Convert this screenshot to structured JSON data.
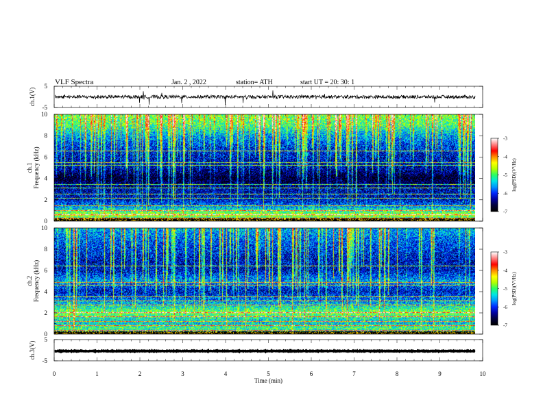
{
  "header": {
    "title": "VLF  Spectra",
    "date": "Jan. 2  , 2022",
    "station": "station= ATH",
    "start": "start  UT  =    20: 30: 1"
  },
  "colors": {
    "spectrum": [
      "#000000",
      "#00003c",
      "#0000a0",
      "#0028ff",
      "#0096ff",
      "#00e6e6",
      "#28ff64",
      "#b4ff00",
      "#ffff00",
      "#ff8c00",
      "#ff0000",
      "#ff8080",
      "#ffffff"
    ],
    "waveform": "#000000"
  },
  "chart_data": [
    {
      "type": "line",
      "name": "ch1-waveform",
      "ylabel": "ch.1(V)",
      "ylim": [
        -5,
        5
      ],
      "yticks": [
        "5",
        "-5"
      ],
      "baseline": 0,
      "noise_amplitude": 0.8,
      "spike_amplitude": 3.5
    },
    {
      "type": "heatmap",
      "name": "ch1-spectrogram",
      "ylabel": "ch.1\nFrequency (kHz)",
      "ylim": [
        0,
        10
      ],
      "yticks": [
        "0",
        "2",
        "4",
        "6",
        "8",
        "10"
      ],
      "colorbar": {
        "label": "log(PSD)(V²/Hz)",
        "range": [
          -7,
          -3
        ],
        "ticks": [
          "-3",
          "-4",
          "-5",
          "-6",
          "-7"
        ]
      },
      "frequency_profile": [
        {
          "f": 0.0,
          "v": -6.0
        },
        {
          "f": 0.5,
          "v": -4.5
        },
        {
          "f": 1.0,
          "v": -5.2
        },
        {
          "f": 1.5,
          "v": -5.8
        },
        {
          "f": 2.0,
          "v": -6.2
        },
        {
          "f": 3.0,
          "v": -6.3
        },
        {
          "f": 4.0,
          "v": -6.8
        },
        {
          "f": 5.0,
          "v": -6.3
        },
        {
          "f": 6.0,
          "v": -6.2
        },
        {
          "f": 7.0,
          "v": -6.0
        },
        {
          "f": 8.0,
          "v": -5.6
        },
        {
          "f": 9.0,
          "v": -5.0
        },
        {
          "f": 10.0,
          "v": -4.8
        }
      ],
      "lines_khz": [
        0.25,
        0.6,
        1.0,
        1.45,
        2.1,
        2.5,
        3.1,
        3.4,
        5.2,
        5.5,
        6.6
      ],
      "sferic_count": 160
    },
    {
      "type": "heatmap",
      "name": "ch2-spectrogram",
      "ylabel": "ch.2\nFrequency (kHz)",
      "ylim": [
        0,
        10
      ],
      "yticks": [
        "0",
        "2",
        "4",
        "6",
        "8",
        "10"
      ],
      "colorbar": {
        "label": "log(PSD)(V²/Hz)",
        "range": [
          -7,
          -3
        ],
        "ticks": [
          "-3",
          "-4",
          "-5",
          "-6",
          "-7"
        ]
      },
      "frequency_profile": [
        {
          "f": 0.0,
          "v": -5.8
        },
        {
          "f": 0.5,
          "v": -5.0
        },
        {
          "f": 1.0,
          "v": -5.4
        },
        {
          "f": 1.5,
          "v": -5.2
        },
        {
          "f": 2.0,
          "v": -4.8
        },
        {
          "f": 3.0,
          "v": -5.6
        },
        {
          "f": 4.0,
          "v": -6.2
        },
        {
          "f": 5.0,
          "v": -5.6
        },
        {
          "f": 6.0,
          "v": -6.2
        },
        {
          "f": 7.0,
          "v": -6.2
        },
        {
          "f": 8.0,
          "v": -6.0
        },
        {
          "f": 9.0,
          "v": -5.8
        },
        {
          "f": 10.0,
          "v": -5.5
        }
      ],
      "lines_khz": [
        0.3,
        0.8,
        1.2,
        1.6,
        2.0,
        2.7,
        3.1,
        3.5,
        4.6,
        4.9,
        6.4
      ],
      "sferic_count": 120
    },
    {
      "type": "line",
      "name": "ch3-waveform",
      "ylabel": "ch.3(V)",
      "ylim": [
        -5,
        5
      ],
      "yticks": [
        "5",
        "-5"
      ],
      "baseline": -0.4,
      "noise_amplitude": 0.15,
      "spike_amplitude": 0
    }
  ],
  "x_axis": {
    "label": "Time  (min)",
    "range": [
      0,
      10
    ],
    "ticks": [
      "0",
      "1",
      "2",
      "3",
      "4",
      "5",
      "6",
      "7",
      "8",
      "9",
      "10"
    ],
    "data_end": 9.82
  }
}
